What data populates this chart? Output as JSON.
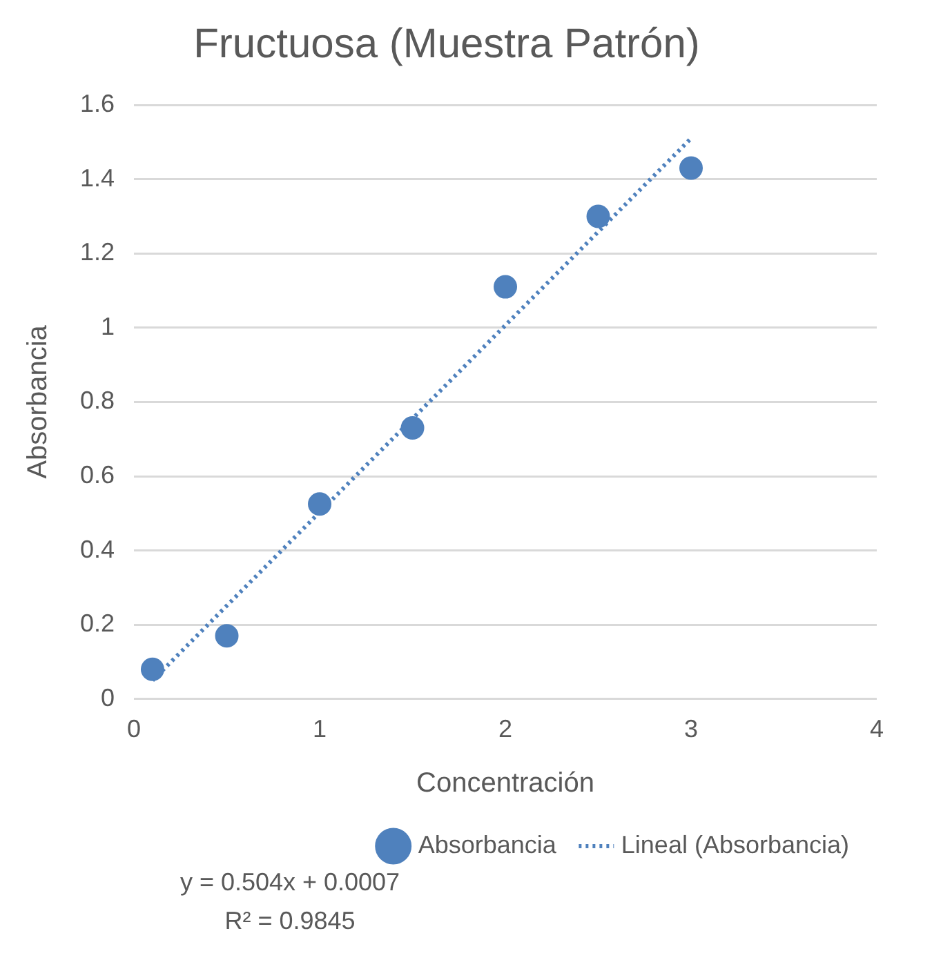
{
  "chart_data": {
    "type": "scatter",
    "title": "Fructuosa (Muestra Patrón)",
    "xlabel": "Concentración",
    "ylabel": "Absorbancia",
    "x": [
      0.1,
      0.5,
      1,
      1.5,
      2,
      2.5,
      3
    ],
    "series": [
      {
        "name": "Absorbancia",
        "color": "#4f81bd",
        "values": [
          0.08,
          0.17,
          0.525,
          0.73,
          1.11,
          1.3,
          1.43
        ],
        "marker": "circle"
      },
      {
        "name": "Lineal (Absorbancia)",
        "type": "line",
        "color": "#4f81bd",
        "x": [
          0.1,
          3
        ],
        "values": [
          0.05,
          1.51
        ],
        "line_style": "dotted",
        "marker": "none"
      }
    ],
    "xlim": [
      0,
      4
    ],
    "xticks": [
      0,
      1,
      2,
      3,
      4
    ],
    "ylim": [
      0,
      1.6
    ],
    "yticks": [
      0,
      0.2,
      0.4,
      0.6,
      0.8,
      1,
      1.2,
      1.4,
      1.6
    ],
    "grid": "y",
    "legend": "bottom right",
    "annotations": [
      "y = 0.504x + 0.0007",
      "R² = 0.9845"
    ]
  }
}
